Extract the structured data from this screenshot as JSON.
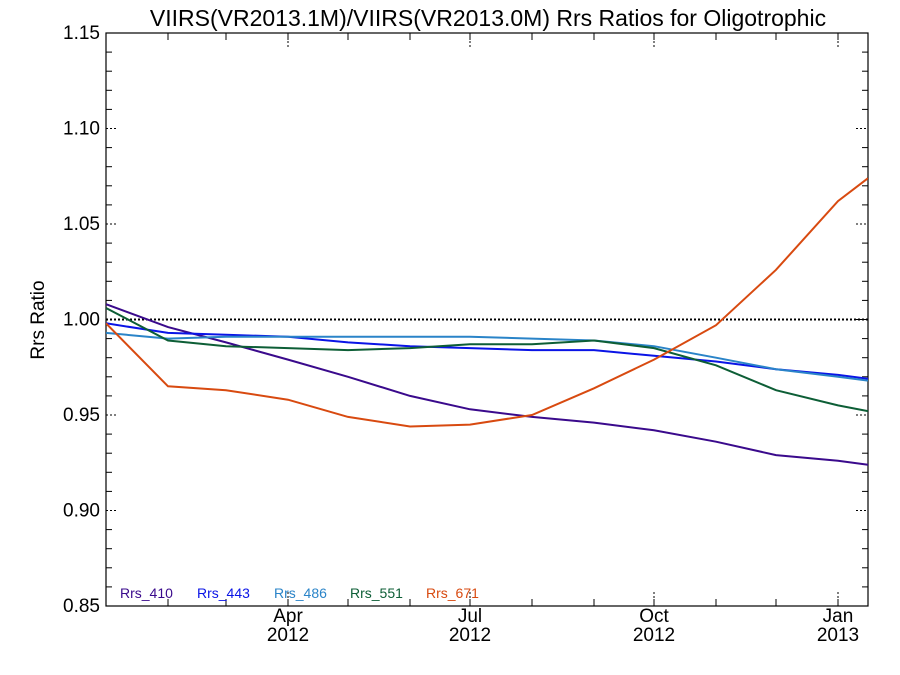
{
  "chart_data": {
    "type": "line",
    "title": "VIIRS(VR2013.1M)/VIIRS(VR2013.0M)  Rrs Ratios for Oligotrophic",
    "xlabel": "",
    "ylabel": "Rrs Ratio",
    "ylim": [
      0.85,
      1.15
    ],
    "xlim": [
      "2012-01-01",
      "2013-01-16"
    ],
    "y_ticks": [
      "0.85",
      "0.90",
      "0.95",
      "1.00",
      "1.05",
      "1.10",
      "1.15"
    ],
    "x_major_ticks": [
      {
        "date": "2012-04-01",
        "label_line1": "Apr",
        "label_line2": "2012"
      },
      {
        "date": "2012-07-01",
        "label_line1": "Jul",
        "label_line2": "2012"
      },
      {
        "date": "2012-10-01",
        "label_line1": "Oct",
        "label_line2": "2012"
      },
      {
        "date": "2013-01-01",
        "label_line1": "Jan",
        "label_line2": "2013"
      }
    ],
    "reference_line": 1.0,
    "legend_position": "bottom-left",
    "series": [
      {
        "name": "Rrs_410",
        "color": "#3a0a8c",
        "x": [
          "2012-01-01",
          "2012-02-01",
          "2012-03-01",
          "2012-04-01",
          "2012-05-01",
          "2012-06-01",
          "2012-07-01",
          "2012-08-01",
          "2012-09-01",
          "2012-10-01",
          "2012-11-01",
          "2012-12-01",
          "2013-01-01",
          "2013-01-16"
        ],
        "y": [
          1.008,
          0.996,
          0.988,
          0.979,
          0.97,
          0.96,
          0.953,
          0.949,
          0.946,
          0.942,
          0.936,
          0.929,
          0.926,
          0.924
        ]
      },
      {
        "name": "Rrs_443",
        "color": "#0a14e6",
        "x": [
          "2012-01-01",
          "2012-02-01",
          "2012-03-01",
          "2012-04-01",
          "2012-05-01",
          "2012-06-01",
          "2012-07-01",
          "2012-08-01",
          "2012-09-01",
          "2012-10-01",
          "2012-11-01",
          "2012-12-01",
          "2013-01-01",
          "2013-01-16"
        ],
        "y": [
          0.998,
          0.993,
          0.992,
          0.991,
          0.988,
          0.986,
          0.985,
          0.984,
          0.984,
          0.981,
          0.978,
          0.974,
          0.971,
          0.969
        ]
      },
      {
        "name": "Rrs_486",
        "color": "#2a84c8",
        "x": [
          "2012-01-01",
          "2012-02-01",
          "2012-03-01",
          "2012-04-01",
          "2012-05-01",
          "2012-06-01",
          "2012-07-01",
          "2012-08-01",
          "2012-09-01",
          "2012-10-01",
          "2012-11-01",
          "2012-12-01",
          "2013-01-01",
          "2013-01-16"
        ],
        "y": [
          0.993,
          0.99,
          0.991,
          0.991,
          0.991,
          0.991,
          0.991,
          0.99,
          0.989,
          0.986,
          0.98,
          0.974,
          0.97,
          0.968
        ]
      },
      {
        "name": "Rrs_551",
        "color": "#0d5e36",
        "x": [
          "2012-01-01",
          "2012-02-01",
          "2012-03-01",
          "2012-04-01",
          "2012-05-01",
          "2012-06-01",
          "2012-07-01",
          "2012-08-01",
          "2012-09-01",
          "2012-10-01",
          "2012-11-01",
          "2012-12-01",
          "2013-01-01",
          "2013-01-16"
        ],
        "y": [
          1.006,
          0.989,
          0.986,
          0.985,
          0.984,
          0.985,
          0.987,
          0.987,
          0.989,
          0.985,
          0.976,
          0.963,
          0.955,
          0.952
        ]
      },
      {
        "name": "Rrs_671",
        "color": "#d84a10",
        "x": [
          "2012-01-01",
          "2012-02-01",
          "2012-03-01",
          "2012-04-01",
          "2012-05-01",
          "2012-06-01",
          "2012-07-01",
          "2012-08-01",
          "2012-09-01",
          "2012-10-01",
          "2012-11-01",
          "2012-12-01",
          "2013-01-01",
          "2013-01-16"
        ],
        "y": [
          0.998,
          0.965,
          0.963,
          0.958,
          0.949,
          0.944,
          0.945,
          0.95,
          0.964,
          0.979,
          0.997,
          1.026,
          1.062,
          1.074
        ]
      }
    ]
  }
}
